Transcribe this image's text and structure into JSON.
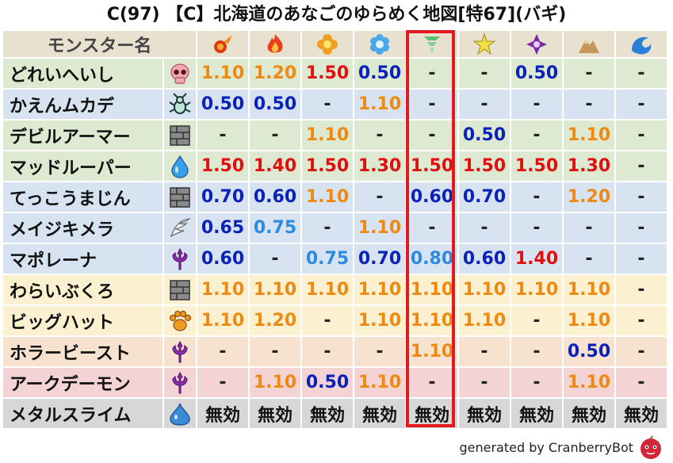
{
  "title": "C(97) 【C】北海道のあなごのゆらめく地図[特67](バギ)",
  "header": {
    "name_label": "モンスター名",
    "elements": [
      "fire-icon",
      "flame-icon",
      "blast-icon",
      "ice-icon",
      "wind-icon",
      "lightning-icon",
      "dark-icon",
      "earth-icon",
      "water-icon"
    ]
  },
  "highlight_column": 4,
  "colors": {
    "orange": "#ee8a12",
    "red": "#e01010",
    "blue": "#0a22b8",
    "light_blue": "#2b8be0",
    "highlight_border": "#e3191e"
  },
  "rows": [
    {
      "name": "どれいへいし",
      "type_icon": "skull-icon",
      "bg": "green",
      "values": [
        [
          "1.10",
          "orange"
        ],
        [
          "1.20",
          "orange"
        ],
        [
          "1.50",
          "red"
        ],
        [
          "0.50",
          "blue"
        ],
        [
          "-",
          "dash"
        ],
        [
          "-",
          "dash"
        ],
        [
          "0.50",
          "blue"
        ],
        [
          "-",
          "dash"
        ],
        [
          "-",
          "dash"
        ]
      ]
    },
    {
      "name": "かえんムカデ",
      "type_icon": "insect-icon",
      "bg": "blue",
      "values": [
        [
          "0.50",
          "blue"
        ],
        [
          "0.50",
          "blue"
        ],
        [
          "-",
          "dash"
        ],
        [
          "1.10",
          "orange"
        ],
        [
          "-",
          "dash"
        ],
        [
          "-",
          "dash"
        ],
        [
          "-",
          "dash"
        ],
        [
          "-",
          "dash"
        ],
        [
          "-",
          "dash"
        ]
      ]
    },
    {
      "name": "デビルアーマー",
      "type_icon": "material-icon",
      "bg": "green",
      "values": [
        [
          "-",
          "dash"
        ],
        [
          "-",
          "dash"
        ],
        [
          "1.10",
          "orange"
        ],
        [
          "-",
          "dash"
        ],
        [
          "-",
          "dash"
        ],
        [
          "0.50",
          "blue"
        ],
        [
          "-",
          "dash"
        ],
        [
          "1.10",
          "orange"
        ],
        [
          "-",
          "dash"
        ]
      ]
    },
    {
      "name": "マッドルーパー",
      "type_icon": "slime-drop-icon",
      "bg": "green",
      "values": [
        [
          "1.50",
          "red"
        ],
        [
          "1.40",
          "red"
        ],
        [
          "1.50",
          "red"
        ],
        [
          "1.30",
          "red"
        ],
        [
          "1.50",
          "red"
        ],
        [
          "1.50",
          "red"
        ],
        [
          "1.50",
          "red"
        ],
        [
          "1.30",
          "red"
        ],
        [
          "-",
          "dash"
        ]
      ]
    },
    {
      "name": "てっこうまじん",
      "type_icon": "material-icon",
      "bg": "blue",
      "values": [
        [
          "0.70",
          "blue"
        ],
        [
          "0.60",
          "blue"
        ],
        [
          "1.10",
          "orange"
        ],
        [
          "-",
          "dash"
        ],
        [
          "0.60",
          "blue"
        ],
        [
          "0.70",
          "blue"
        ],
        [
          "-",
          "dash"
        ],
        [
          "1.20",
          "orange"
        ],
        [
          "-",
          "dash"
        ]
      ]
    },
    {
      "name": "メイジキメラ",
      "type_icon": "wing-icon",
      "bg": "blue",
      "values": [
        [
          "0.65",
          "blue"
        ],
        [
          "0.75",
          "light_blue"
        ],
        [
          "-",
          "dash"
        ],
        [
          "1.10",
          "orange"
        ],
        [
          "-",
          "dash"
        ],
        [
          "-",
          "dash"
        ],
        [
          "-",
          "dash"
        ],
        [
          "-",
          "dash"
        ],
        [
          "-",
          "dash"
        ]
      ]
    },
    {
      "name": "マポレーナ",
      "type_icon": "demon-icon",
      "bg": "blue",
      "values": [
        [
          "0.60",
          "blue"
        ],
        [
          "-",
          "dash"
        ],
        [
          "0.75",
          "light_blue"
        ],
        [
          "0.70",
          "blue"
        ],
        [
          "0.80",
          "light_blue"
        ],
        [
          "0.60",
          "blue"
        ],
        [
          "1.40",
          "red"
        ],
        [
          "-",
          "dash"
        ],
        [
          "-",
          "dash"
        ]
      ]
    },
    {
      "name": "わらいぶくろ",
      "type_icon": "material-icon",
      "bg": "yellow",
      "values": [
        [
          "1.10",
          "orange"
        ],
        [
          "1.10",
          "orange"
        ],
        [
          "1.10",
          "orange"
        ],
        [
          "1.10",
          "orange"
        ],
        [
          "1.10",
          "orange"
        ],
        [
          "1.10",
          "orange"
        ],
        [
          "1.10",
          "orange"
        ],
        [
          "1.10",
          "orange"
        ],
        [
          "-",
          "dash"
        ]
      ]
    },
    {
      "name": "ビッグハット",
      "type_icon": "beast-paw-icon",
      "bg": "yellow",
      "values": [
        [
          "1.10",
          "orange"
        ],
        [
          "1.20",
          "orange"
        ],
        [
          "-",
          "dash"
        ],
        [
          "1.10",
          "orange"
        ],
        [
          "1.10",
          "orange"
        ],
        [
          "1.10",
          "orange"
        ],
        [
          "-",
          "dash"
        ],
        [
          "1.10",
          "orange"
        ],
        [
          "-",
          "dash"
        ]
      ]
    },
    {
      "name": "ホラービースト",
      "type_icon": "demon-icon",
      "bg": "peach",
      "values": [
        [
          "-",
          "dash"
        ],
        [
          "-",
          "dash"
        ],
        [
          "-",
          "dash"
        ],
        [
          "-",
          "dash"
        ],
        [
          "1.10",
          "orange"
        ],
        [
          "-",
          "dash"
        ],
        [
          "-",
          "dash"
        ],
        [
          "0.50",
          "blue"
        ],
        [
          "-",
          "dash"
        ]
      ]
    },
    {
      "name": "アークデーモン",
      "type_icon": "demon-icon",
      "bg": "pink",
      "values": [
        [
          "-",
          "dash"
        ],
        [
          "1.10",
          "orange"
        ],
        [
          "0.50",
          "blue"
        ],
        [
          "1.10",
          "orange"
        ],
        [
          "-",
          "dash"
        ],
        [
          "-",
          "dash"
        ],
        [
          "-",
          "dash"
        ],
        [
          "1.10",
          "orange"
        ],
        [
          "-",
          "dash"
        ]
      ]
    },
    {
      "name": "メタルスライム",
      "type_icon": "slime-icon",
      "bg": "gray",
      "values": [
        [
          "無効",
          "black"
        ],
        [
          "無効",
          "black"
        ],
        [
          "無効",
          "black"
        ],
        [
          "無効",
          "black"
        ],
        [
          "無効",
          "black"
        ],
        [
          "無効",
          "black"
        ],
        [
          "無効",
          "black"
        ],
        [
          "無効",
          "black"
        ],
        [
          "無効",
          "black"
        ]
      ]
    }
  ],
  "footer": "generated by CranberryBot",
  "footer_logo": "cranberry-bot-icon"
}
